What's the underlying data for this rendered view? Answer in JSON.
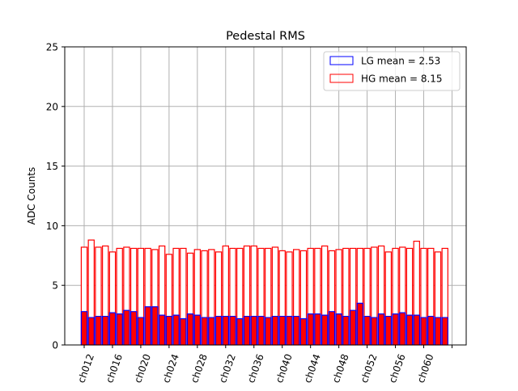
{
  "chart_data": {
    "type": "bar",
    "title": "Pedestal RMS",
    "ylabel": "ADC Counts",
    "xlabel": "",
    "ylim": [
      0,
      25
    ],
    "yticks": [
      0,
      5,
      10,
      15,
      20,
      25
    ],
    "grid": true,
    "legend_placement": "top-right",
    "categories": [
      "ch012",
      "ch013",
      "ch014",
      "ch015",
      "ch016",
      "ch017",
      "ch018",
      "ch019",
      "ch020",
      "ch021",
      "ch022",
      "ch023",
      "ch024",
      "ch025",
      "ch026",
      "ch027",
      "ch028",
      "ch029",
      "ch030",
      "ch031",
      "ch032",
      "ch033",
      "ch034",
      "ch035",
      "ch036",
      "ch037",
      "ch038",
      "ch039",
      "ch040",
      "ch041",
      "ch042",
      "ch043",
      "ch044",
      "ch045",
      "ch046",
      "ch047",
      "ch048",
      "ch049",
      "ch050",
      "ch051",
      "ch052",
      "ch053",
      "ch054",
      "ch055",
      "ch056",
      "ch057",
      "ch058",
      "ch059",
      "ch060",
      "ch061",
      "ch062",
      "ch063"
    ],
    "xtick_labels": [
      "ch012",
      "ch016",
      "ch020",
      "ch024",
      "ch028",
      "ch032",
      "ch036",
      "ch040",
      "ch044",
      "ch048",
      "ch052",
      "ch056",
      "ch060"
    ],
    "series": [
      {
        "name": "LG mean = 2.53",
        "color": "#0000ff",
        "values": [
          2.8,
          2.3,
          2.4,
          2.4,
          2.7,
          2.6,
          2.9,
          2.8,
          2.3,
          3.2,
          3.2,
          2.5,
          2.4,
          2.5,
          2.2,
          2.6,
          2.5,
          2.3,
          2.3,
          2.4,
          2.4,
          2.4,
          2.2,
          2.4,
          2.4,
          2.4,
          2.3,
          2.4,
          2.4,
          2.4,
          2.4,
          2.2,
          2.6,
          2.6,
          2.5,
          2.8,
          2.6,
          2.4,
          2.9,
          3.5,
          2.4,
          2.3,
          2.6,
          2.4,
          2.6,
          2.7,
          2.5,
          2.5,
          2.3,
          2.4,
          2.3,
          2.3
        ]
      },
      {
        "name": "HG mean = 8.15",
        "color": "#ff0000",
        "values": [
          8.2,
          8.8,
          8.2,
          8.3,
          7.8,
          8.1,
          8.2,
          8.1,
          8.1,
          8.1,
          8.0,
          8.3,
          7.6,
          8.1,
          8.1,
          7.7,
          8.0,
          7.9,
          8.0,
          7.8,
          8.3,
          8.1,
          8.1,
          8.3,
          8.3,
          8.1,
          8.1,
          8.2,
          7.9,
          7.8,
          8.0,
          7.9,
          8.1,
          8.1,
          8.3,
          7.9,
          8.0,
          8.1,
          8.1,
          8.1,
          8.1,
          8.2,
          8.3,
          7.8,
          8.1,
          8.2,
          8.1,
          8.7,
          8.1,
          8.1,
          7.8,
          8.1
        ]
      }
    ]
  }
}
